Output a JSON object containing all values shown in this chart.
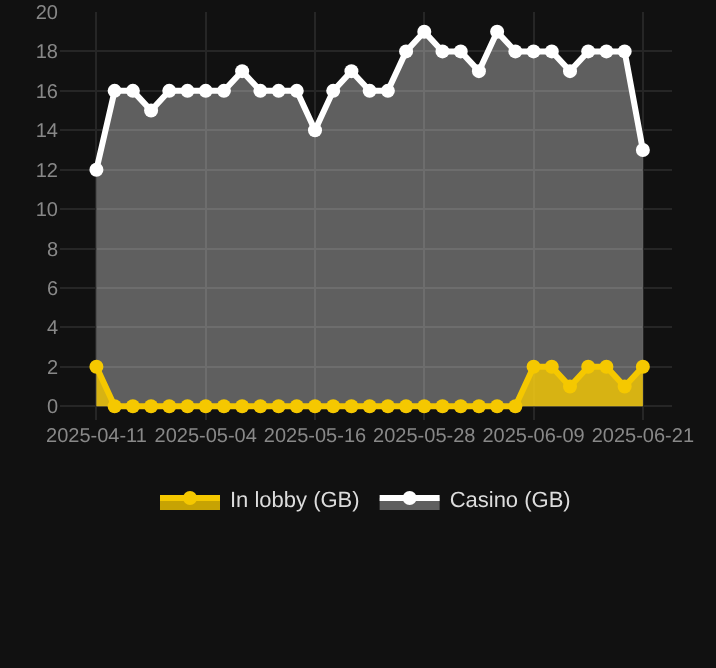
{
  "chart_data": {
    "type": "area",
    "categories": [
      "2025-04-11",
      null,
      null,
      null,
      null,
      null,
      "2025-05-04",
      null,
      null,
      null,
      null,
      null,
      "2025-05-16",
      null,
      null,
      null,
      null,
      null,
      "2025-05-28",
      null,
      null,
      null,
      null,
      null,
      "2025-06-09",
      null,
      null,
      null,
      null,
      null,
      "2025-06-21"
    ],
    "series": [
      {
        "name": "In lobby (GB)",
        "color": "#f5c800",
        "values": [
          2,
          0,
          0,
          0,
          0,
          0,
          0,
          0,
          0,
          0,
          0,
          0,
          0,
          0,
          0,
          0,
          0,
          0,
          0,
          0,
          0,
          0,
          0,
          0,
          2,
          2,
          1,
          2,
          2,
          1,
          2
        ]
      },
      {
        "name": "Casino (GB)",
        "color": "#ffffff",
        "values": [
          12,
          16,
          16,
          15,
          16,
          16,
          16,
          16,
          17,
          16,
          16,
          16,
          14,
          16,
          17,
          16,
          16,
          18,
          19,
          18,
          18,
          17,
          19,
          18,
          18,
          18,
          17,
          18,
          18,
          18,
          13
        ]
      }
    ],
    "ylim": [
      -0.7,
      20
    ],
    "yticks": [
      0,
      2,
      4,
      6,
      8,
      10,
      12,
      14,
      16,
      18,
      20
    ],
    "grid": true,
    "legend": "bottom",
    "marker": "circle"
  }
}
